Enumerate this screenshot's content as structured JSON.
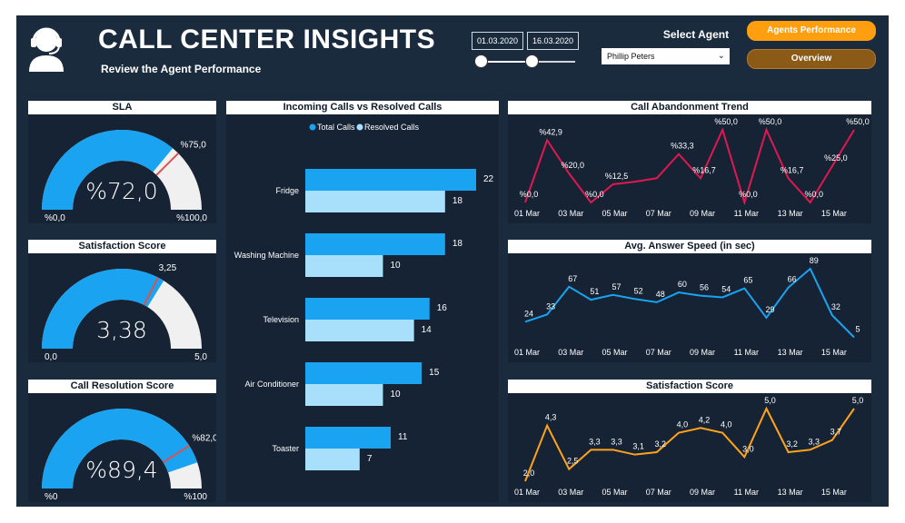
{
  "header": {
    "title": "CALL CENTER INSIGHTS",
    "subtitle": "Review the Agent Performance",
    "icon": "headset-agent-icon"
  },
  "date_range": {
    "start": "01.03.2020",
    "end": "16.03.2020"
  },
  "agent_filter": {
    "label": "Select Agent",
    "value": "Phillip Peters"
  },
  "nav": {
    "agents_performance": "Agents Performance",
    "overview": "Overview"
  },
  "colors": {
    "background": "#1b2b3e",
    "panel": "#162334",
    "blue": "#1aa3f0",
    "light_blue": "#a8e0fb",
    "crimson": "#e0184f",
    "orange": "#ffa31a",
    "gauge_track": "#f0f0f0",
    "target": "#d9534f"
  },
  "gauges": [
    {
      "id": "sla",
      "title": "SLA",
      "value_label": "%72,0",
      "min_label": "%0,0",
      "max_label": "%100,0",
      "target_label": "%75,0",
      "value": 72.0,
      "min": 0,
      "max": 100,
      "target": 75
    },
    {
      "id": "satisfaction",
      "title": "Satisfaction Score",
      "value_label": "3,38",
      "min_label": "0,0",
      "max_label": "5,0",
      "target_label": "3,25",
      "value": 3.38,
      "min": 0,
      "max": 5,
      "target": 3.25
    },
    {
      "id": "resolution",
      "title": "Call Resolution Score",
      "value_label": "%89,4",
      "min_label": "%0",
      "max_label": "%100",
      "target_label": "%82,0",
      "value": 89.4,
      "min": 0,
      "max": 100,
      "target": 82
    }
  ],
  "bar_chart": {
    "title": "Incoming Calls vs Resolved Calls",
    "legend": [
      "Total Calls",
      "Resolved Calls"
    ],
    "chart_data": {
      "type": "bar",
      "categories": [
        "Fridge",
        "Washing Machine",
        "Television",
        "Air Conditioner",
        "Toaster"
      ],
      "series": [
        {
          "name": "Total Calls",
          "values": [
            22,
            18,
            16,
            15,
            11
          ]
        },
        {
          "name": "Resolved Calls",
          "values": [
            18,
            10,
            14,
            10,
            7
          ]
        }
      ],
      "xlim": [
        0,
        22
      ]
    }
  },
  "line_charts": [
    {
      "id": "abandonment",
      "title": "Call Abandonment Trend",
      "color": "#e0184f",
      "chart_data": {
        "type": "line",
        "x": [
          1,
          2,
          3,
          4,
          5,
          6,
          7,
          8,
          9,
          10,
          11,
          12,
          13,
          14,
          15,
          16
        ],
        "values": [
          0.0,
          42.9,
          20.0,
          0.0,
          12.5,
          14.3,
          16.7,
          33.3,
          16.7,
          50.0,
          0.0,
          50.0,
          16.7,
          0.0,
          25.0,
          50.0
        ],
        "labels": [
          "%0,0",
          "%42,9",
          "%20,0",
          "%0,0",
          "%12,5",
          "",
          "",
          "%33,3",
          "%16,7",
          "%50,0",
          "%0,0",
          "%50,0",
          "%16,7",
          "%0,0",
          "%25,0",
          "%50,0"
        ],
        "ylim": [
          0,
          50
        ]
      },
      "xticks": [
        "01 Mar",
        "03 Mar",
        "05 Mar",
        "07 Mar",
        "09 Mar",
        "11 Mar",
        "13 Mar",
        "15 Mar"
      ]
    },
    {
      "id": "answer_speed",
      "title": "Avg. Answer Speed (in sec)",
      "color": "#1aa3f0",
      "chart_data": {
        "type": "line",
        "x": [
          1,
          2,
          3,
          4,
          5,
          6,
          7,
          8,
          9,
          10,
          11,
          12,
          13,
          14,
          15,
          16
        ],
        "values": [
          24,
          33,
          67,
          51,
          57,
          52,
          48,
          60,
          56,
          54,
          65,
          29,
          66,
          89,
          32,
          5
        ],
        "labels": [
          "24",
          "33",
          "67",
          "51",
          "57",
          "52",
          "48",
          "60",
          "56",
          "54",
          "65",
          "29",
          "66",
          "89",
          "32",
          "5"
        ],
        "ylim": [
          0,
          89
        ]
      },
      "xticks": [
        "01 Mar",
        "03 Mar",
        "05 Mar",
        "07 Mar",
        "09 Mar",
        "11 Mar",
        "13 Mar",
        "15 Mar"
      ]
    },
    {
      "id": "satisfaction_trend",
      "title": "Satisfaction Score",
      "color": "#ffa31a",
      "chart_data": {
        "type": "line",
        "x": [
          1,
          2,
          3,
          4,
          5,
          6,
          7,
          8,
          9,
          10,
          11,
          12,
          13,
          14,
          15,
          16
        ],
        "values": [
          2.0,
          4.3,
          2.5,
          3.3,
          3.3,
          3.1,
          3.2,
          4.0,
          4.2,
          4.0,
          3.0,
          5.0,
          3.2,
          3.3,
          3.7,
          5.0
        ],
        "labels": [
          "2,0",
          "4,3",
          "2,5",
          "3,3",
          "3,3",
          "3,1",
          "3,2",
          "4,0",
          "4,2",
          "4,0",
          "3,0",
          "5,0",
          "3,2",
          "3,3",
          "3,7",
          "5,0"
        ],
        "ylim": [
          2,
          5
        ]
      },
      "xticks": [
        "01 Mar",
        "03 Mar",
        "05 Mar",
        "07 Mar",
        "09 Mar",
        "11 Mar",
        "13 Mar",
        "15 Mar"
      ]
    }
  ]
}
